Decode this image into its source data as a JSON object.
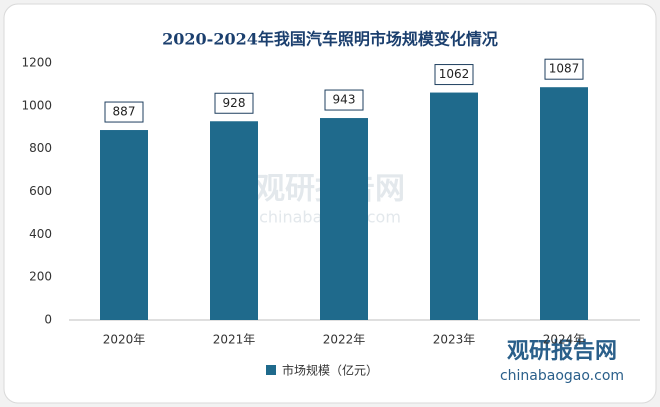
{
  "chart_data": {
    "type": "bar",
    "title": "2020-2024年我国汽车照明市场规模变化情况",
    "categories": [
      "2020年",
      "2021年",
      "2022年",
      "2023年",
      "2024年"
    ],
    "series": [
      {
        "name": "市场规模（亿元）",
        "color": "#1f6a8c",
        "values": [
          887,
          928,
          943,
          1062,
          1087
        ]
      }
    ],
    "ylim": [
      0,
      1200
    ],
    "yticks": [
      0,
      200,
      400,
      600,
      800,
      1000,
      1200
    ],
    "grid": false,
    "legend": "bottom",
    "watermark": {
      "name": "观研报告网",
      "url": "chinabaogao.com"
    }
  }
}
